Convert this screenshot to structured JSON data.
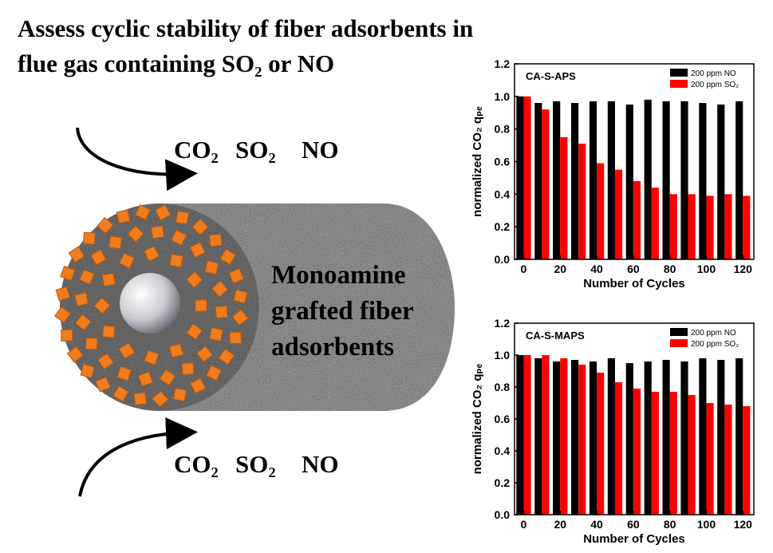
{
  "title_lines": [
    "Assess cyclic stability of fiber adsorbents in",
    "flue gas containing SO₂ or NO"
  ],
  "gases_top": [
    "CO₂",
    "SO₂",
    "NO"
  ],
  "gases_bottom": [
    "CO₂",
    "SO₂",
    "NO"
  ],
  "fiber_label_lines": [
    "Monoamine",
    "grafted fiber",
    "adsorbents"
  ],
  "chart_data": [
    {
      "type": "bar",
      "panel_label": "CA-S-APS",
      "x_label": "Number of Cycles",
      "y_label": "normalized CO₂ qₚₑ",
      "x": [
        0,
        10,
        20,
        30,
        40,
        50,
        60,
        70,
        80,
        90,
        100,
        110,
        120
      ],
      "series": [
        {
          "name": "200 ppm NO",
          "color": "#000000",
          "values": [
            1.0,
            0.96,
            0.97,
            0.96,
            0.97,
            0.97,
            0.95,
            0.98,
            0.97,
            0.97,
            0.96,
            0.95,
            0.97
          ]
        },
        {
          "name": "200 ppm SO₂",
          "color": "#ff0000",
          "values": [
            1.0,
            0.92,
            0.75,
            0.71,
            0.59,
            0.55,
            0.48,
            0.44,
            0.4,
            0.4,
            0.39,
            0.4,
            0.39
          ]
        }
      ],
      "xlim": [
        -5,
        126
      ],
      "xticks": [
        0,
        20,
        40,
        60,
        80,
        100,
        120
      ],
      "ylim": [
        0,
        1.2
      ],
      "yticks": [
        {
          "value": 0,
          "label": "0.0"
        },
        0.2,
        0.4,
        0.6,
        0.8,
        {
          "value": 1,
          "label": "1.0"
        },
        1.2
      ],
      "legend": "upper right"
    },
    {
      "type": "bar",
      "panel_label": "CA-S-MAPS",
      "x_label": "Number of Cycles",
      "y_label": "normalized CO₂ qₚₑ",
      "x": [
        0,
        10,
        20,
        30,
        40,
        50,
        60,
        70,
        80,
        90,
        100,
        110,
        120
      ],
      "series": [
        {
          "name": "200 ppm NO",
          "color": "#000000",
          "values": [
            1.0,
            0.98,
            0.96,
            0.97,
            0.96,
            0.98,
            0.95,
            0.96,
            0.97,
            0.96,
            0.98,
            0.97,
            0.98
          ]
        },
        {
          "name": "200 ppm SO₂",
          "color": "#ff0000",
          "values": [
            1.0,
            1.0,
            0.98,
            0.94,
            0.89,
            0.83,
            0.79,
            0.77,
            0.77,
            0.75,
            0.7,
            0.69,
            0.68
          ]
        }
      ],
      "xlim": [
        -5,
        126
      ],
      "xticks": [
        0,
        20,
        40,
        60,
        80,
        100,
        120
      ],
      "ylim": [
        0,
        1.2
      ],
      "yticks": [
        {
          "value": 0,
          "label": "0.0"
        },
        0.2,
        0.4,
        0.6,
        0.8,
        {
          "value": 1,
          "label": "1.0"
        },
        1.2
      ],
      "legend": "upper right"
    }
  ]
}
